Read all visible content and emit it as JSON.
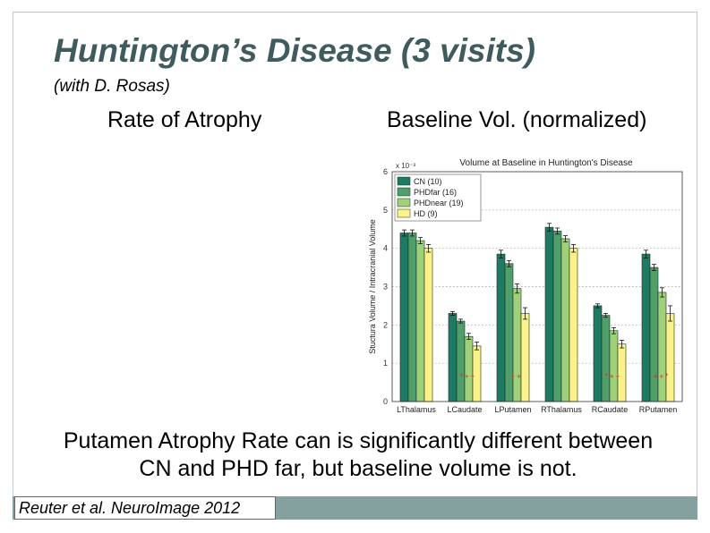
{
  "slide": {
    "title": "Huntington’s Disease (3 visits)",
    "subtitle": "(with D. Rosas)",
    "left_heading": "Rate of Atrophy",
    "right_heading": "Baseline Vol. (normalized)",
    "conclusion_line1": "Putamen Atrophy Rate can is significantly different between",
    "conclusion_line2": "CN and PHD far, but baseline volume is not.",
    "citation": "Reuter et al. NeuroImage 2012"
  },
  "colors": {
    "title": "#3f5b5e",
    "footer_bar": "#84a19f",
    "series": [
      "#1f7a63",
      "#4f9f6a",
      "#9fd17a",
      "#fbf28a"
    ],
    "significance_marker": "#cc3311"
  },
  "chart_data": {
    "type": "bar",
    "title": "Volume at Baseline in Huntington's Disease",
    "ylabel": "Stuctura Volume / Intracranial Volume",
    "y_exponent_label": "x 10⁻³",
    "ylim": [
      0,
      6
    ],
    "yticks": [
      "0",
      "1",
      "2",
      "3",
      "4",
      "5",
      "6"
    ],
    "grid": "horizontal dotted",
    "legend_position": "top-left",
    "categories": [
      "LThalamus",
      "LCaudate",
      "LPutamen",
      "RThalamus",
      "RCaudate",
      "RPutamen"
    ],
    "series": [
      {
        "name": "CN (10)",
        "values": [
          4.4,
          2.3,
          3.85,
          4.55,
          2.5,
          3.85
        ],
        "errors": [
          0.08,
          0.05,
          0.1,
          0.1,
          0.05,
          0.1
        ]
      },
      {
        "name": "PHDfar (16)",
        "values": [
          4.4,
          2.1,
          3.6,
          4.45,
          2.25,
          3.5
        ],
        "errors": [
          0.08,
          0.05,
          0.08,
          0.08,
          0.05,
          0.08
        ]
      },
      {
        "name": "PHDnear (19)",
        "values": [
          4.2,
          1.7,
          2.95,
          4.25,
          1.85,
          2.85
        ],
        "errors": [
          0.08,
          0.08,
          0.12,
          0.08,
          0.08,
          0.12
        ]
      },
      {
        "name": "HD (9)",
        "values": [
          4.0,
          1.45,
          2.3,
          4.0,
          1.5,
          2.3
        ],
        "errors": [
          0.1,
          0.1,
          0.15,
          0.1,
          0.1,
          0.2
        ]
      }
    ],
    "significance_markers": [
      "",
      "*++",
      "++",
      "",
      "*++",
      "++*"
    ]
  }
}
